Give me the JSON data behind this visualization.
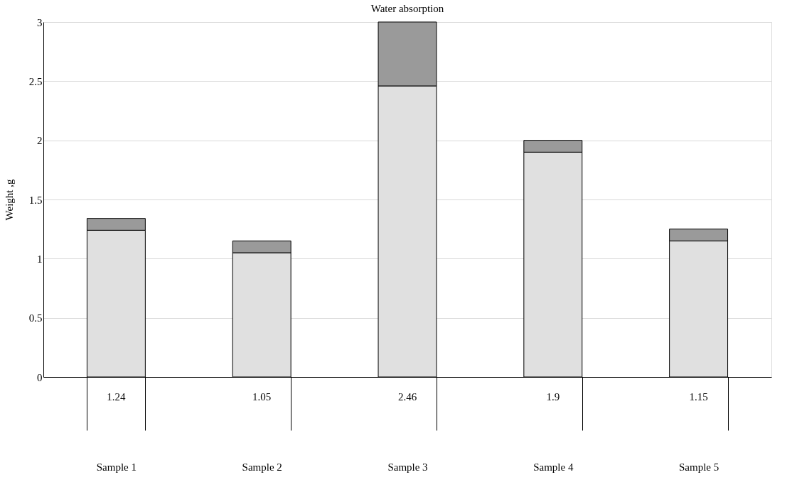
{
  "chart_data": {
    "type": "bar",
    "title": "Water absorption",
    "ylabel": "Weight ,g",
    "categories": [
      "Sample 1",
      "Sample 2",
      "Sample 3",
      "Sample 4",
      "Sample 5"
    ],
    "stacked": true,
    "series": [
      {
        "color": "#e0e0e0",
        "values": [
          1.24,
          1.05,
          2.46,
          1.9,
          1.15
        ],
        "value_labels": [
          "1.24",
          "1.05",
          "2.46",
          "1.9",
          "1.15"
        ]
      },
      {
        "color": "#9a9a9a",
        "values": [
          0.1,
          0.1,
          0.54,
          0.1,
          0.1
        ]
      }
    ],
    "ylim": [
      0,
      3
    ],
    "yticks": [
      0,
      0.5,
      1,
      1.5,
      2,
      2.5,
      3
    ],
    "grid": "y"
  }
}
